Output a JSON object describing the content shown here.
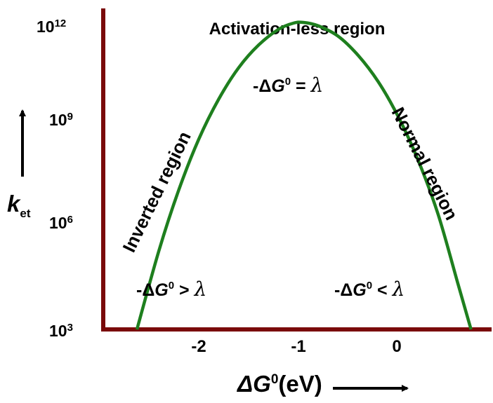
{
  "colors": {
    "axes": "#7a0a0a",
    "curve": "#1e7f1e",
    "text": "#000000"
  },
  "chart_data": {
    "type": "line",
    "title": "Activation-less region",
    "xlabel": {
      "main": "ΔG",
      "sup": "0",
      "unit": "(eV)"
    },
    "ylabel": {
      "main": "k",
      "sub": "et"
    },
    "x_ticks": [
      {
        "value": -2,
        "label": "-2"
      },
      {
        "value": -1,
        "label": "-1"
      },
      {
        "value": 0,
        "label": "0"
      }
    ],
    "y_ticks": [
      {
        "value": 3,
        "base": "10",
        "exp": "3"
      },
      {
        "value": 6,
        "base": "10",
        "exp": "6"
      },
      {
        "value": 9,
        "base": "10",
        "exp": "9"
      },
      {
        "value": 12,
        "base": "10",
        "exp": "12"
      }
    ],
    "y_scale": "log",
    "xlim": [
      -2.7,
      0.95
    ],
    "ylim": [
      3,
      12.6
    ],
    "series": [
      {
        "x": [
          -2.62,
          -2.4,
          -2.2,
          -2.0,
          -1.8,
          -1.6,
          -1.4,
          -1.2,
          -1.05,
          -0.95,
          -0.8,
          -0.6,
          -0.4,
          -0.2,
          0.0,
          0.2,
          0.4,
          0.6,
          0.73
        ],
        "y": [
          3.0,
          5.25,
          7.0,
          8.45,
          9.6,
          10.5,
          11.15,
          11.6,
          11.78,
          11.8,
          11.7,
          11.4,
          10.85,
          10.1,
          9.1,
          7.85,
          6.3,
          4.3,
          3.0
        ]
      }
    ],
    "annotations": {
      "inverted_region": "Inverted region",
      "normal_region": "Normal region",
      "peak_cond": {
        "prefix": "-Δ",
        "g": "G",
        "sup": "0",
        "rel": " = ",
        "lam": "λ"
      },
      "left_cond": {
        "prefix": "-Δ",
        "g": "G",
        "sup": "0",
        "rel": " > ",
        "lam": "λ"
      },
      "right_cond": {
        "prefix": "-Δ",
        "g": "G",
        "sup": "0",
        "rel": " < ",
        "lam": "λ"
      }
    }
  }
}
